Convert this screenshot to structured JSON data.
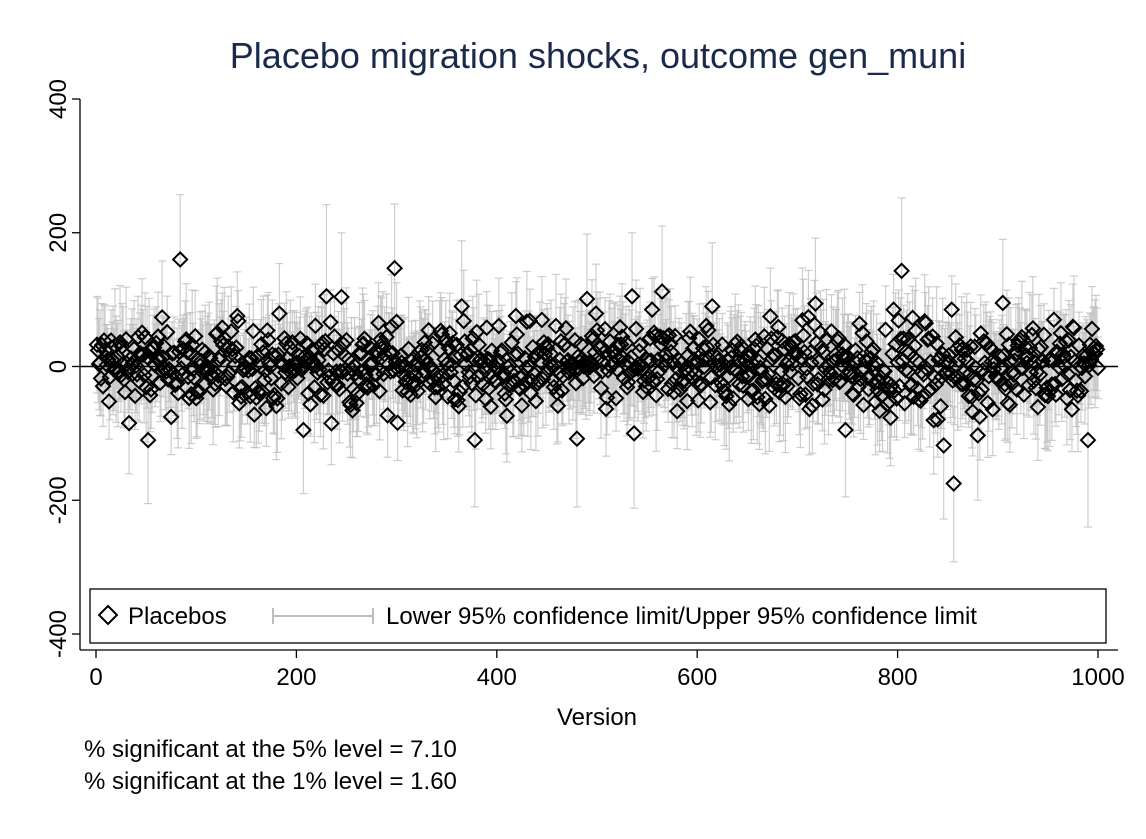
{
  "chart_data": {
    "type": "scatter",
    "title": "Placebo migration shocks, outcome gen_muni",
    "xlabel": "Version",
    "ylabel": "",
    "xlim": [
      0,
      1000
    ],
    "ylim": [
      -400,
      400
    ],
    "x_ticks": [
      0,
      200,
      400,
      600,
      800,
      1000
    ],
    "y_ticks": [
      -400,
      -200,
      0,
      200,
      400
    ],
    "x_tick_labels": [
      "0",
      "200",
      "400",
      "600",
      "800",
      "1000"
    ],
    "y_tick_labels": [
      "-400",
      "-200",
      "0",
      "200",
      "400"
    ],
    "reference_line_y": 0,
    "grid": false,
    "legend_position": "bottom, inside plot",
    "marker": "hollow-diamond",
    "colors": {
      "points": "#000000",
      "ci": "#bdbdbd",
      "refline": "#000000",
      "title": "#1a2a4a"
    },
    "series": [
      {
        "name": "Placebos",
        "note": "1000 placebo estimates (versions 1-1000), mostly within -100 to 100; selected readable extremes listed",
        "points": [
          {
            "x": 84,
            "y": 160,
            "lower": 65,
            "upper": 257
          },
          {
            "x": 298,
            "y": 147,
            "lower": 50,
            "upper": 243
          },
          {
            "x": 804,
            "y": 143,
            "lower": 40,
            "upper": 252
          },
          {
            "x": 565,
            "y": 112,
            "lower": 15,
            "upper": 210
          },
          {
            "x": 230,
            "y": 105,
            "lower": 5,
            "upper": 242
          },
          {
            "x": 245,
            "y": 104,
            "lower": 10,
            "upper": 200
          },
          {
            "x": 535,
            "y": 105,
            "lower": 10,
            "upper": 200
          },
          {
            "x": 490,
            "y": 101,
            "lower": 5,
            "upper": 198
          },
          {
            "x": 905,
            "y": 95,
            "lower": 0,
            "upper": 190
          },
          {
            "x": 718,
            "y": 94,
            "lower": 0,
            "upper": 192
          },
          {
            "x": 615,
            "y": 90,
            "lower": -5,
            "upper": 185
          },
          {
            "x": 365,
            "y": 90,
            "lower": -5,
            "upper": 188
          },
          {
            "x": 856,
            "y": -175,
            "lower": -292,
            "upper": -60
          },
          {
            "x": 846,
            "y": -118,
            "lower": -228,
            "upper": -10
          },
          {
            "x": 52,
            "y": -110,
            "lower": -205,
            "upper": -15
          },
          {
            "x": 378,
            "y": -110,
            "lower": -210,
            "upper": -10
          },
          {
            "x": 480,
            "y": -108,
            "lower": -210,
            "upper": -5
          },
          {
            "x": 990,
            "y": -110,
            "lower": -240,
            "upper": 15
          },
          {
            "x": 880,
            "y": -103,
            "lower": -200,
            "upper": -5
          },
          {
            "x": 537,
            "y": -100,
            "lower": -212,
            "upper": 5
          },
          {
            "x": 207,
            "y": -95,
            "lower": -190,
            "upper": 0
          },
          {
            "x": 748,
            "y": -95,
            "lower": -195,
            "upper": 5
          }
        ]
      },
      {
        "name": "Lower 95% confidence limit/Upper 95% confidence limit",
        "style": "capped-range"
      }
    ],
    "legend": [
      "Placebos",
      "Lower 95% confidence limit/Upper 95% confidence limit"
    ],
    "annotations": [
      "% significant at the 5% level = 7.10",
      "% significant at the 1% level = 1.60"
    ]
  }
}
